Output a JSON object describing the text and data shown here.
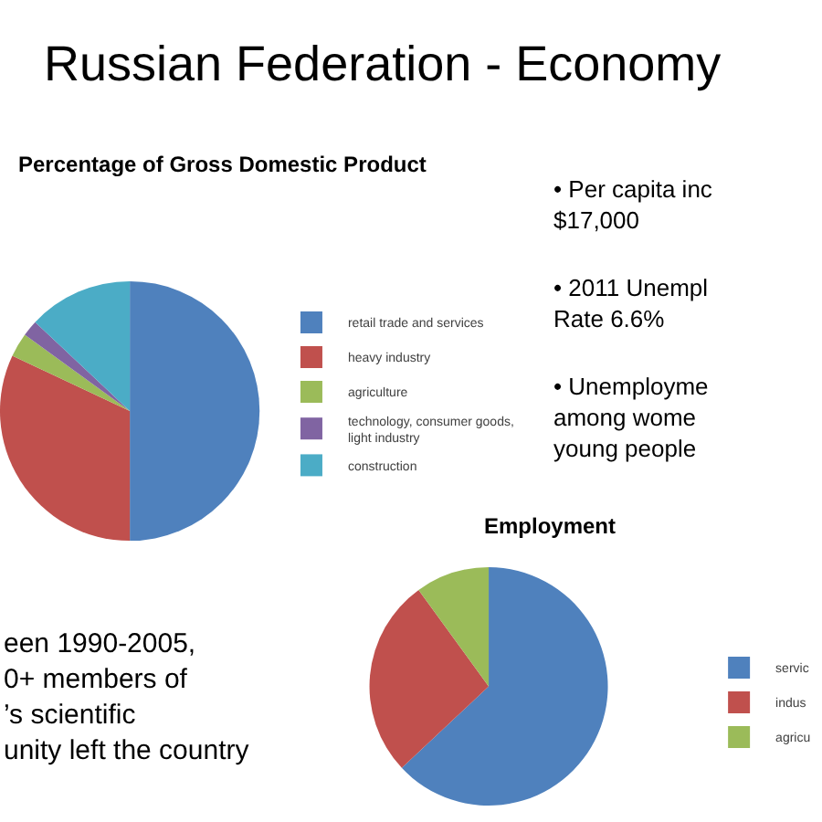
{
  "chart_data": [
    {
      "type": "pie",
      "title": "Percentage of Gross Domestic Product",
      "categories": [
        "retail trade and services",
        "heavy industry",
        "agriculture",
        "technology, consumer goods,\nlight industry",
        "construction"
      ],
      "values": [
        50,
        32,
        3,
        2,
        13
      ],
      "colors": [
        "#4f81bd",
        "#c0504d",
        "#9bbb59",
        "#8064a2",
        "#4bacc6"
      ],
      "legend": "right",
      "annotations": [
        "Russian Federation - Economy",
        "• Per capita inc\n$17,000",
        "• 2011 Unempl\nRate 6.6%",
        "• Unemployme\namong wome\nyoung people",
        "een 1990-2005,\n0+ members of\n’s scientific\nunity left the country"
      ]
    },
    {
      "type": "pie",
      "title": "Employment",
      "categories": [
        "servic",
        "indus",
        "agricu"
      ],
      "values": [
        63,
        27,
        10
      ],
      "colors": [
        "#4f81bd",
        "#c0504d",
        "#9bbb59"
      ],
      "legend": "right"
    }
  ]
}
